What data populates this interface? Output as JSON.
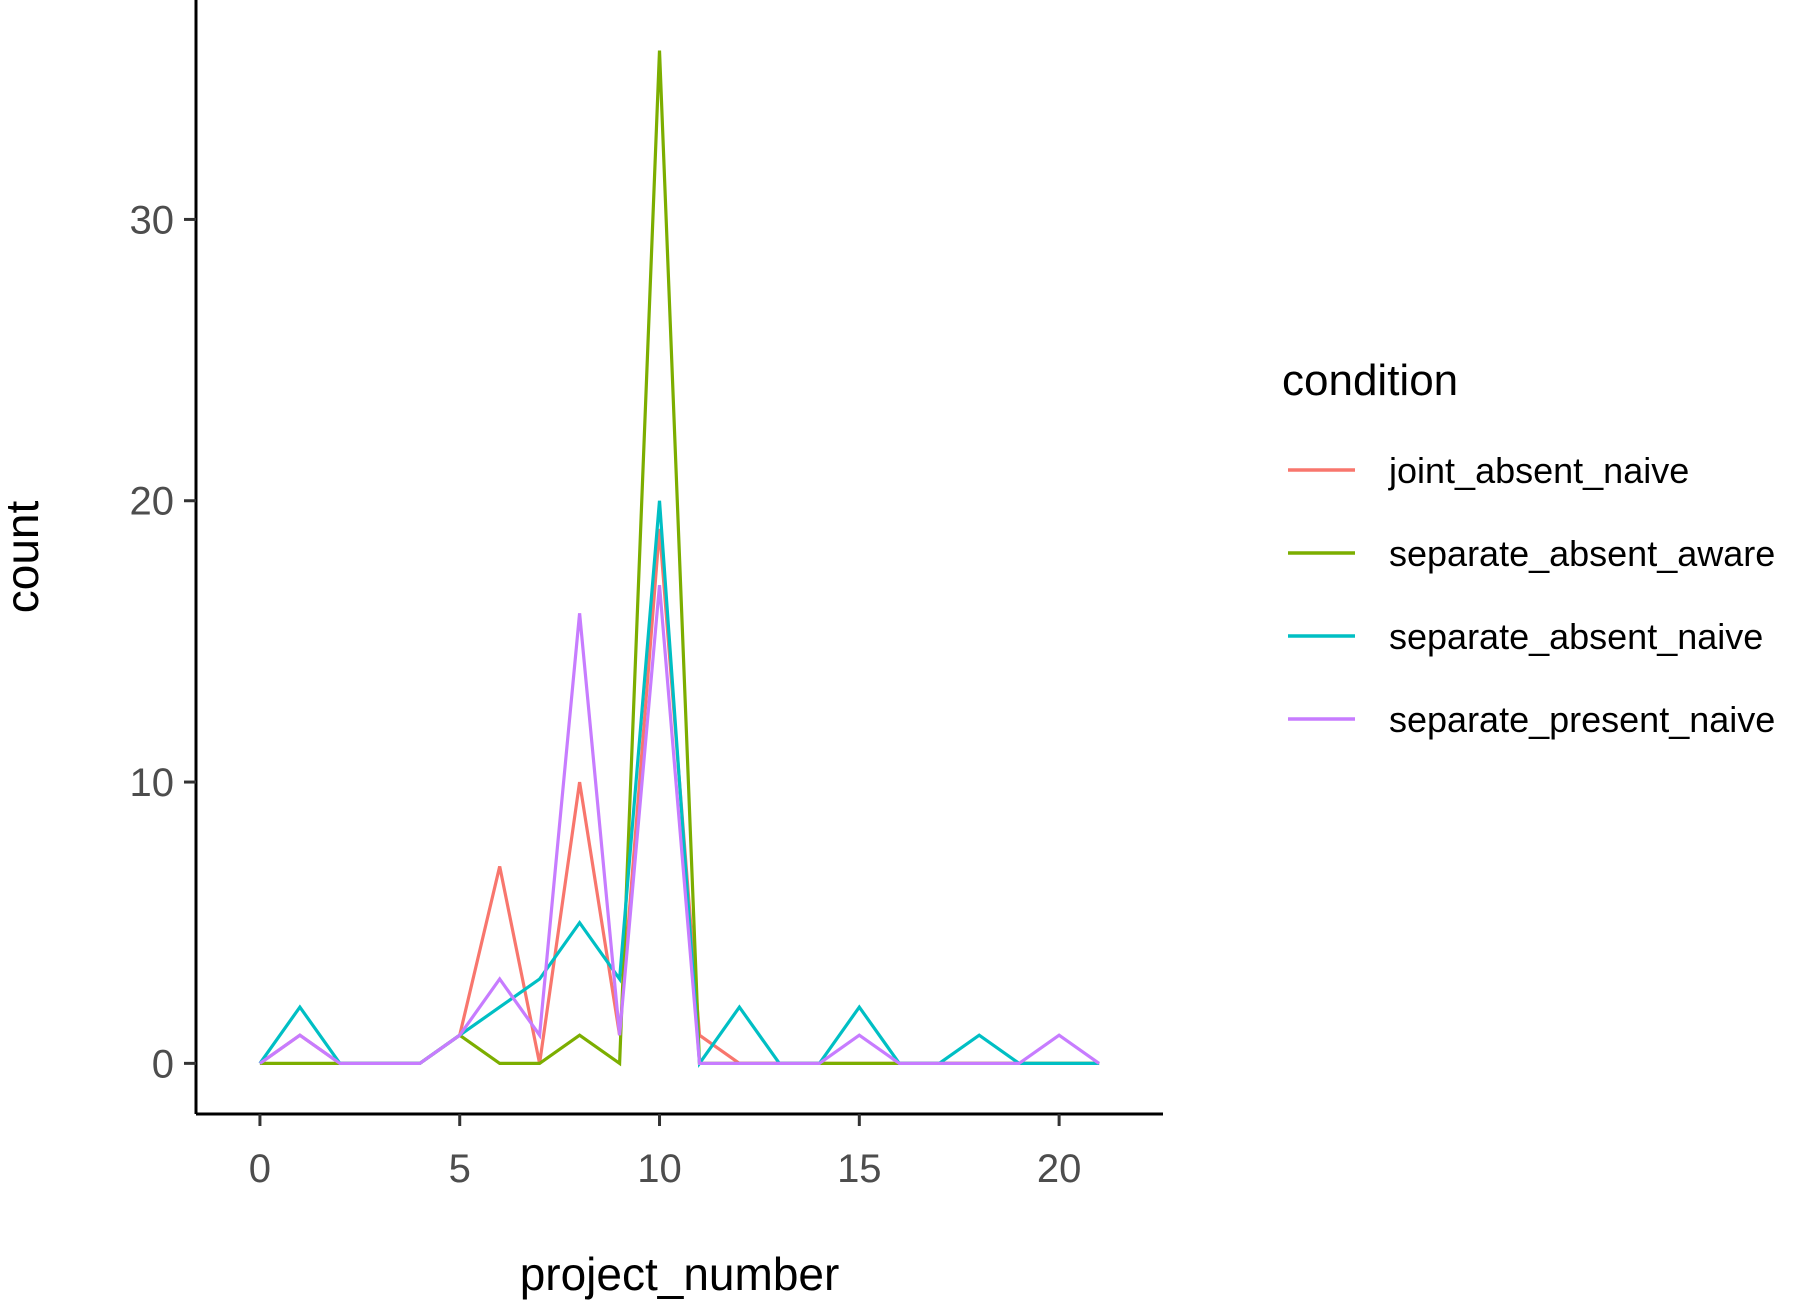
{
  "chart_data": {
    "type": "line",
    "title": "",
    "xlabel": "project_number",
    "ylabel": "count",
    "xlim": [
      -1.6,
      22.6
    ],
    "ylim": [
      -1.8,
      37.8
    ],
    "x_ticks": [
      0,
      5,
      10,
      15,
      20
    ],
    "y_ticks": [
      0,
      10,
      20,
      30
    ],
    "grid": false,
    "legend": {
      "title": "condition",
      "placement": "right"
    },
    "series": [
      {
        "name": "joint_absent_naive",
        "color": "#F8766D",
        "x": [
          0,
          1,
          2,
          3,
          4,
          5,
          6,
          7,
          8,
          9,
          10,
          11,
          12,
          13,
          14,
          15,
          16,
          17,
          18,
          19,
          20,
          21
        ],
        "values": [
          0,
          1,
          0,
          0,
          0,
          1,
          7,
          0,
          10,
          1,
          19,
          1,
          0,
          0,
          0,
          0,
          0,
          0,
          0,
          0,
          0,
          0
        ]
      },
      {
        "name": "separate_absent_aware",
        "color": "#7CAE00",
        "x": [
          0,
          1,
          2,
          3,
          4,
          5,
          6,
          7,
          8,
          9,
          10,
          11,
          12,
          13,
          14,
          15,
          16,
          17,
          18,
          19,
          20,
          21
        ],
        "values": [
          0,
          0,
          0,
          0,
          0,
          1,
          0,
          0,
          1,
          0,
          36,
          0,
          0,
          0,
          0,
          0,
          0,
          0,
          0,
          0,
          0,
          0
        ]
      },
      {
        "name": "separate_absent_naive",
        "color": "#00BFC4",
        "x": [
          0,
          1,
          2,
          3,
          4,
          5,
          6,
          7,
          8,
          9,
          10,
          11,
          12,
          13,
          14,
          15,
          16,
          17,
          18,
          19,
          20,
          21
        ],
        "values": [
          0,
          2,
          0,
          0,
          0,
          1,
          2,
          3,
          5,
          3,
          20,
          0,
          2,
          0,
          0,
          2,
          0,
          0,
          1,
          0,
          0,
          0
        ]
      },
      {
        "name": "separate_present_naive",
        "color": "#C77CFF",
        "x": [
          0,
          1,
          2,
          3,
          4,
          5,
          6,
          7,
          8,
          9,
          10,
          11,
          12,
          13,
          14,
          15,
          16,
          17,
          18,
          19,
          20,
          21
        ],
        "values": [
          0,
          1,
          0,
          0,
          0,
          1,
          3,
          1,
          16,
          1,
          17,
          0,
          0,
          0,
          0,
          1,
          0,
          0,
          0,
          0,
          1,
          0
        ]
      }
    ]
  }
}
